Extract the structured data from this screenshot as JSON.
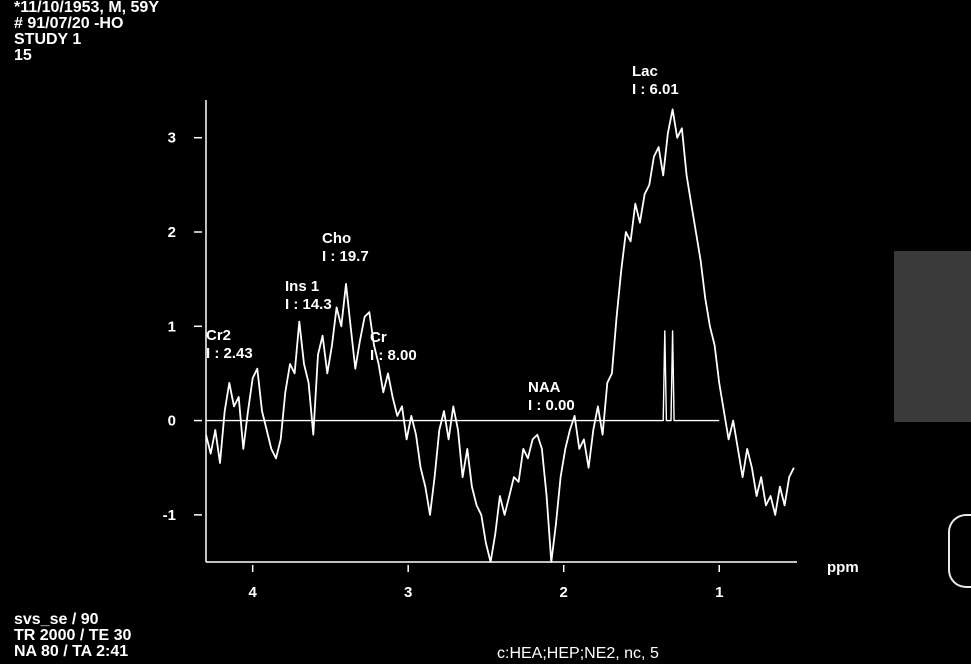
{
  "header": {
    "line1": "*11/10/1953, M, 59Y",
    "line2": "# 91/07/20 -HO",
    "line3": "STUDY 1",
    "line4": "15"
  },
  "footer": {
    "line1": "svs_se / 90",
    "line2": "TR 2000 / TE 30",
    "line3": "NA 80 / TA 2:41",
    "coil": "c:HEA;HEP;NE2, nc, 5"
  },
  "chart_data": {
    "type": "line",
    "xlabel": "ppm",
    "ylabel": "",
    "x_reversed": true,
    "xlim": [
      4.3,
      0.5
    ],
    "ylim": [
      -1.5,
      3.4
    ],
    "xticks": [
      4,
      3,
      2,
      1
    ],
    "yticks": [
      3,
      2,
      1,
      0,
      -1
    ],
    "grid": false,
    "series": [
      {
        "points": [
          [
            4.3,
            -0.15
          ],
          [
            4.27,
            -0.35
          ],
          [
            4.24,
            -0.1
          ],
          [
            4.21,
            -0.45
          ],
          [
            4.18,
            0.1
          ],
          [
            4.15,
            0.4
          ],
          [
            4.12,
            0.15
          ],
          [
            4.09,
            0.25
          ],
          [
            4.06,
            -0.3
          ],
          [
            4.03,
            0.1
          ],
          [
            4.0,
            0.45
          ],
          [
            3.97,
            0.55
          ],
          [
            3.94,
            0.1
          ],
          [
            3.91,
            -0.1
          ],
          [
            3.88,
            -0.3
          ],
          [
            3.85,
            -0.4
          ],
          [
            3.82,
            -0.2
          ],
          [
            3.79,
            0.3
          ],
          [
            3.76,
            0.6
          ],
          [
            3.73,
            0.5
          ],
          [
            3.7,
            1.05
          ],
          [
            3.67,
            0.6
          ],
          [
            3.64,
            0.4
          ],
          [
            3.61,
            -0.15
          ],
          [
            3.58,
            0.7
          ],
          [
            3.55,
            0.9
          ],
          [
            3.52,
            0.5
          ],
          [
            3.49,
            0.8
          ],
          [
            3.46,
            1.2
          ],
          [
            3.43,
            1.0
          ],
          [
            3.4,
            1.45
          ],
          [
            3.37,
            1.0
          ],
          [
            3.34,
            0.55
          ],
          [
            3.31,
            0.85
          ],
          [
            3.28,
            1.1
          ],
          [
            3.25,
            1.15
          ],
          [
            3.22,
            0.8
          ],
          [
            3.19,
            0.6
          ],
          [
            3.16,
            0.3
          ],
          [
            3.13,
            0.5
          ],
          [
            3.1,
            0.25
          ],
          [
            3.07,
            0.05
          ],
          [
            3.04,
            0.15
          ],
          [
            3.01,
            -0.2
          ],
          [
            2.98,
            0.05
          ],
          [
            2.95,
            -0.15
          ],
          [
            2.92,
            -0.5
          ],
          [
            2.89,
            -0.7
          ],
          [
            2.86,
            -1.0
          ],
          [
            2.83,
            -0.6
          ],
          [
            2.8,
            -0.1
          ],
          [
            2.77,
            0.1
          ],
          [
            2.74,
            -0.2
          ],
          [
            2.71,
            0.15
          ],
          [
            2.68,
            -0.1
          ],
          [
            2.65,
            -0.6
          ],
          [
            2.62,
            -0.3
          ],
          [
            2.59,
            -0.7
          ],
          [
            2.56,
            -0.9
          ],
          [
            2.53,
            -1.0
          ],
          [
            2.5,
            -1.3
          ],
          [
            2.47,
            -1.5
          ],
          [
            2.44,
            -1.2
          ],
          [
            2.41,
            -0.8
          ],
          [
            2.38,
            -1.0
          ],
          [
            2.35,
            -0.8
          ],
          [
            2.32,
            -0.6
          ],
          [
            2.29,
            -0.65
          ],
          [
            2.26,
            -0.3
          ],
          [
            2.23,
            -0.4
          ],
          [
            2.2,
            -0.2
          ],
          [
            2.17,
            -0.15
          ],
          [
            2.14,
            -0.3
          ],
          [
            2.11,
            -0.8
          ],
          [
            2.08,
            -1.5
          ],
          [
            2.05,
            -1.1
          ],
          [
            2.02,
            -0.6
          ],
          [
            1.99,
            -0.3
          ],
          [
            1.96,
            -0.1
          ],
          [
            1.93,
            0.05
          ],
          [
            1.9,
            -0.3
          ],
          [
            1.87,
            -0.2
          ],
          [
            1.84,
            -0.5
          ],
          [
            1.81,
            -0.1
          ],
          [
            1.78,
            0.15
          ],
          [
            1.75,
            -0.15
          ],
          [
            1.72,
            0.4
          ],
          [
            1.69,
            0.5
          ],
          [
            1.66,
            1.1
          ],
          [
            1.63,
            1.6
          ],
          [
            1.6,
            2.0
          ],
          [
            1.57,
            1.9
          ],
          [
            1.54,
            2.3
          ],
          [
            1.51,
            2.1
          ],
          [
            1.48,
            2.4
          ],
          [
            1.45,
            2.5
          ],
          [
            1.42,
            2.8
          ],
          [
            1.39,
            2.9
          ],
          [
            1.36,
            2.6
          ],
          [
            1.33,
            3.05
          ],
          [
            1.3,
            3.3
          ],
          [
            1.27,
            3.0
          ],
          [
            1.24,
            3.1
          ],
          [
            1.21,
            2.6
          ],
          [
            1.18,
            2.3
          ],
          [
            1.15,
            2.0
          ],
          [
            1.12,
            1.7
          ],
          [
            1.09,
            1.3
          ],
          [
            1.06,
            1.0
          ],
          [
            1.03,
            0.8
          ],
          [
            1.0,
            0.4
          ],
          [
            0.97,
            0.1
          ],
          [
            0.94,
            -0.2
          ],
          [
            0.91,
            0.0
          ],
          [
            0.88,
            -0.3
          ],
          [
            0.85,
            -0.6
          ],
          [
            0.82,
            -0.3
          ],
          [
            0.79,
            -0.5
          ],
          [
            0.76,
            -0.8
          ],
          [
            0.73,
            -0.6
          ],
          [
            0.7,
            -0.9
          ],
          [
            0.67,
            -0.8
          ],
          [
            0.64,
            -1.0
          ],
          [
            0.61,
            -0.7
          ],
          [
            0.58,
            -0.9
          ],
          [
            0.55,
            -0.6
          ],
          [
            0.52,
            -0.5
          ]
        ]
      },
      {
        "points": [
          [
            4.3,
            0.0
          ],
          [
            1.36,
            0.0
          ],
          [
            1.35,
            0.95
          ],
          [
            1.34,
            0.0
          ],
          [
            1.31,
            0.0
          ],
          [
            1.3,
            0.95
          ],
          [
            1.29,
            0.0
          ],
          [
            1.0,
            0.0
          ]
        ]
      }
    ],
    "annotations": [
      {
        "name": "Cr2",
        "value": "I : 2.43"
      },
      {
        "name": "Ins 1",
        "value": "I : 14.3"
      },
      {
        "name": "Cho",
        "value": "I : 19.7"
      },
      {
        "name": "Cr",
        "value": "I : 8.00"
      },
      {
        "name": "NAA",
        "value": "I : 0.00"
      },
      {
        "name": "Lac",
        "value": "I : 6.01"
      }
    ]
  }
}
